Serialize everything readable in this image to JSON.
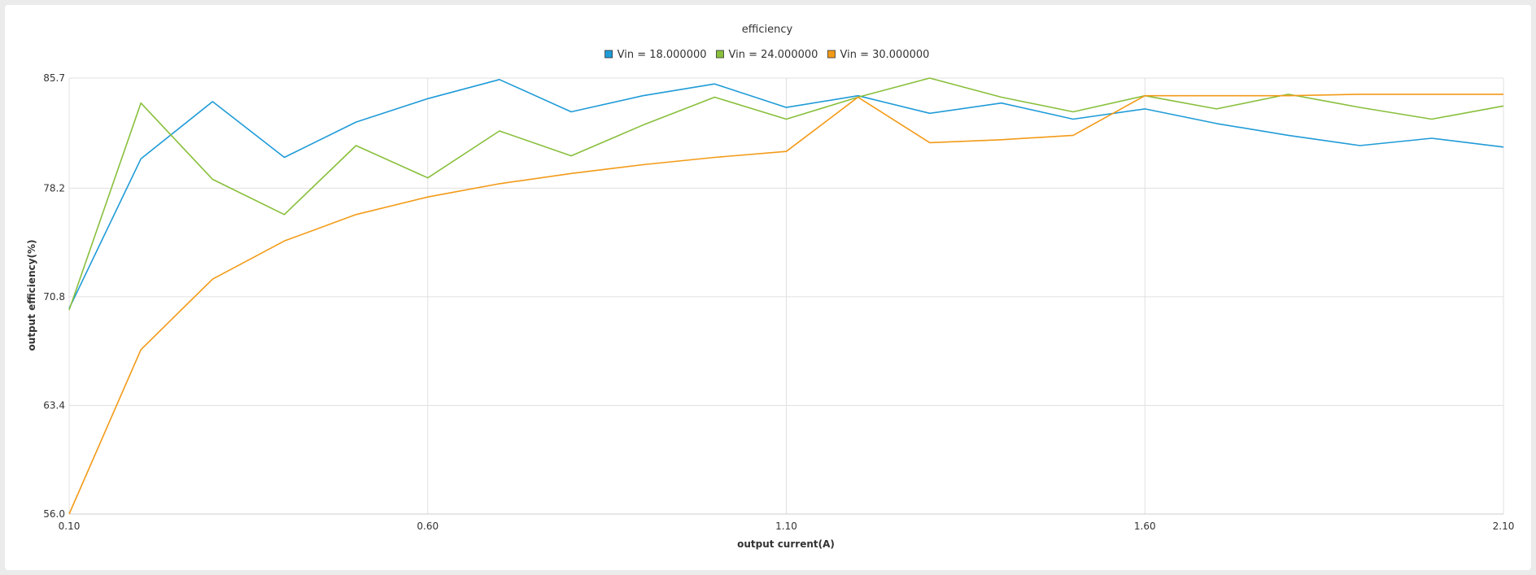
{
  "chart_data": {
    "type": "line",
    "title": "efficiency",
    "xlabel": "output current(A)",
    "ylabel": "output efficiency(%)",
    "xlim": [
      0.1,
      2.1
    ],
    "ylim": [
      56.0,
      85.7
    ],
    "x_ticks": [
      "0.10",
      "0.60",
      "1.10",
      "1.60",
      "2.10"
    ],
    "y_ticks": [
      "56.0",
      "63.4",
      "70.8",
      "78.2",
      "85.7"
    ],
    "grid": true,
    "legend_position": "top",
    "x": [
      0.1,
      0.2,
      0.3,
      0.4,
      0.5,
      0.6,
      0.7,
      0.8,
      0.9,
      1.0,
      1.1,
      1.2,
      1.3,
      1.4,
      1.5,
      1.6,
      1.7,
      1.8,
      1.9,
      2.0,
      2.1
    ],
    "series": [
      {
        "name": "Vin = 18.000000",
        "color": "#1f9bd7",
        "values": [
          70.0,
          80.2,
          84.1,
          80.3,
          82.7,
          84.3,
          85.6,
          83.4,
          84.5,
          85.3,
          83.7,
          84.5,
          83.3,
          84.0,
          82.9,
          83.6,
          82.6,
          81.8,
          81.1,
          81.6,
          81.0
        ]
      },
      {
        "name": "Vin = 24.000000",
        "color": "#88bf3b",
        "values": [
          69.9,
          84.0,
          78.8,
          76.4,
          81.1,
          78.9,
          82.1,
          80.4,
          82.5,
          84.4,
          82.9,
          84.4,
          85.7,
          84.4,
          83.4,
          84.5,
          83.6,
          84.6,
          83.7,
          82.9,
          83.8
        ]
      },
      {
        "name": "Vin = 30.000000",
        "color": "#f39a17",
        "values": [
          56.0,
          67.2,
          72.0,
          74.6,
          76.4,
          77.6,
          78.5,
          79.2,
          79.8,
          80.3,
          80.7,
          84.4,
          81.3,
          81.5,
          81.8,
          84.5,
          84.5,
          84.5,
          84.6,
          84.6,
          84.6
        ]
      }
    ]
  }
}
